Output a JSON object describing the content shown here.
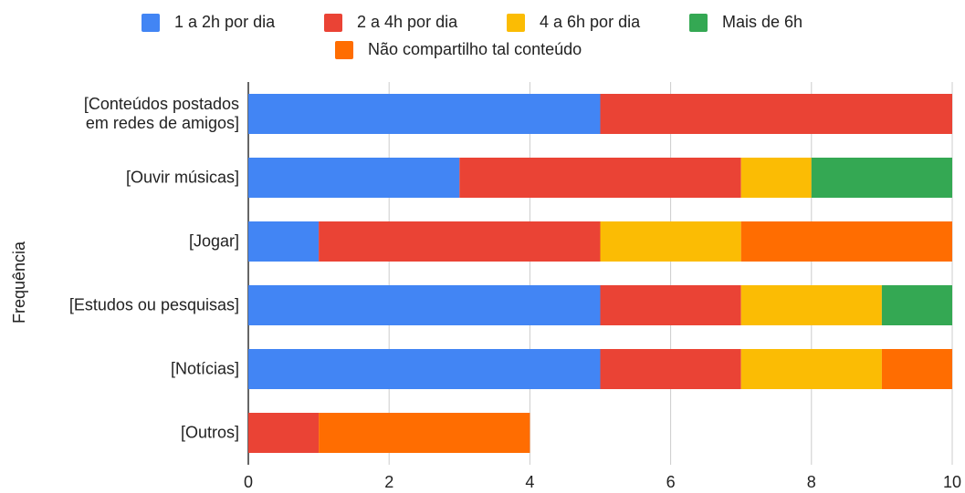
{
  "chart_data": {
    "type": "stacked_barh",
    "categories": [
      "[Conteúdos postados em redes de amigos]",
      "[Ouvir músicas]",
      "[Jogar]",
      "[Estudos ou pesquisas]",
      "[Notícias]",
      "[Outros]"
    ],
    "series": [
      {
        "name": "1 a 2h por dia",
        "color": "#4285f4",
        "values": [
          5,
          3,
          1,
          5,
          5,
          0
        ]
      },
      {
        "name": "2 a 4h por dia",
        "color": "#ea4335",
        "values": [
          5,
          4,
          4,
          2,
          2,
          1
        ]
      },
      {
        "name": "4 a 6h por dia",
        "color": "#fbbc04",
        "values": [
          0,
          1,
          2,
          2,
          2,
          0
        ]
      },
      {
        "name": "Mais de 6h",
        "color": "#34a853",
        "values": [
          0,
          2,
          0,
          1,
          0,
          0
        ]
      },
      {
        "name": "Não compartilho tal conteúdo",
        "color": "#ff6d01",
        "values": [
          0,
          0,
          3,
          0,
          1,
          3
        ]
      }
    ],
    "y_label": "Frequência",
    "xlim": [
      0,
      10
    ],
    "xticks": [
      0,
      2,
      4,
      6,
      8,
      10
    ],
    "grid": true,
    "legend": "top"
  }
}
